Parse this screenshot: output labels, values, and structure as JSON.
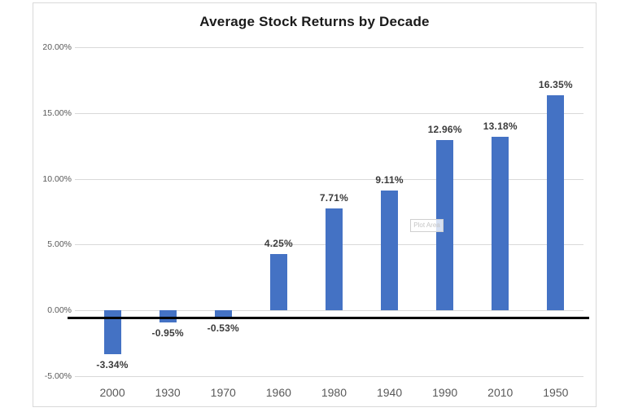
{
  "window": {
    "background": "#ffffff"
  },
  "tooltip": {
    "label": "Plot Area"
  },
  "chart_data": {
    "type": "bar",
    "title": "Average Stock Returns by Decade",
    "categories": [
      "2000",
      "1930",
      "1970",
      "1960",
      "1980",
      "1940",
      "1990",
      "2010",
      "1950"
    ],
    "values": [
      -3.34,
      -0.95,
      -0.53,
      4.25,
      7.71,
      9.11,
      12.96,
      13.18,
      16.35
    ],
    "data_labels": [
      "-3.34%",
      "-0.95%",
      "-0.53%",
      "4.25%",
      "7.71%",
      "9.11%",
      "12.96%",
      "13.18%",
      "16.35%"
    ],
    "series_name": "Average Stock Returns",
    "xlabel": "",
    "ylabel": "",
    "ylim": [
      -5,
      20
    ],
    "y_ticks": [
      20,
      15,
      10,
      5,
      0,
      -5
    ],
    "y_tick_labels": [
      "20.00%",
      "15.00%",
      "10.00%",
      "5.00%",
      "0.00%",
      "-5.00%"
    ],
    "grid": true,
    "legend": false,
    "bar_color": "#4472C4",
    "gridline_color": "#d9d9d9",
    "axis_label_color": "#595959",
    "data_label_color": "#3b3b3b",
    "title_color": "#1a1a1a",
    "axis_line_color": "#000000"
  }
}
